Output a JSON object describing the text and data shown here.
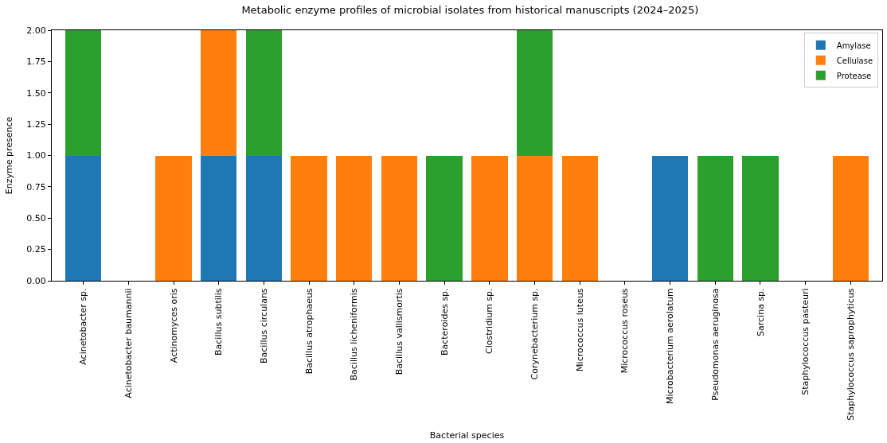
{
  "chart_data": {
    "type": "bar",
    "stacked": true,
    "title": "Metabolic enzyme profiles of microbial isolates from historical manuscripts (2024–2025)",
    "xlabel": "Bacterial species",
    "ylabel": "Enzyme presence",
    "categories": [
      "Acinetobacter sp.",
      "Acinetobacter baumannii",
      "Actinomyces oris",
      "Bacillus subtilis",
      "Bacillus circulans",
      "Bacillus atrophaeus",
      "Bacillus licheniformis",
      "Bacillus vallismortis",
      "Bacteroides sp.",
      "Clostridium sp.",
      "Corynebacterium sp.",
      "Micrococcus luteus",
      "Micrococcus roseus",
      "Microbacterium aerolatum",
      "Pseudomonas aeruginosa",
      "Sarcina sp.",
      "Staphylococcus pasteuri",
      "Staphylococcus saprophyticus"
    ],
    "series": [
      {
        "name": "Amylase",
        "color": "#1f77b4",
        "values": [
          1,
          0,
          0,
          1,
          1,
          0,
          0,
          0,
          0,
          0,
          0,
          0,
          0,
          1,
          0,
          0,
          0,
          0
        ]
      },
      {
        "name": "Cellulase",
        "color": "#ff7f0e",
        "values": [
          0,
          0,
          1,
          1,
          0,
          1,
          1,
          1,
          0,
          1,
          1,
          1,
          0,
          0,
          0,
          0,
          0,
          1
        ]
      },
      {
        "name": "Protease",
        "color": "#2ca02c",
        "values": [
          1,
          0,
          0,
          0,
          1,
          0,
          0,
          0,
          1,
          0,
          1,
          0,
          0,
          0,
          1,
          1,
          0,
          0
        ]
      }
    ],
    "ylim": [
      0,
      2
    ],
    "yticks": [
      {
        "value": 0,
        "label": "0.00"
      },
      {
        "value": 0.25,
        "label": "0.25"
      },
      {
        "value": 0.5,
        "label": "0.50"
      },
      {
        "value": 0.75,
        "label": "0.75"
      },
      {
        "value": 1,
        "label": "1.00"
      },
      {
        "value": 1.25,
        "label": "1.25"
      },
      {
        "value": 1.5,
        "label": "1.50"
      },
      {
        "value": 1.75,
        "label": "1.75"
      },
      {
        "value": 2,
        "label": "2.00"
      }
    ],
    "grid": false,
    "legend": "top right"
  }
}
